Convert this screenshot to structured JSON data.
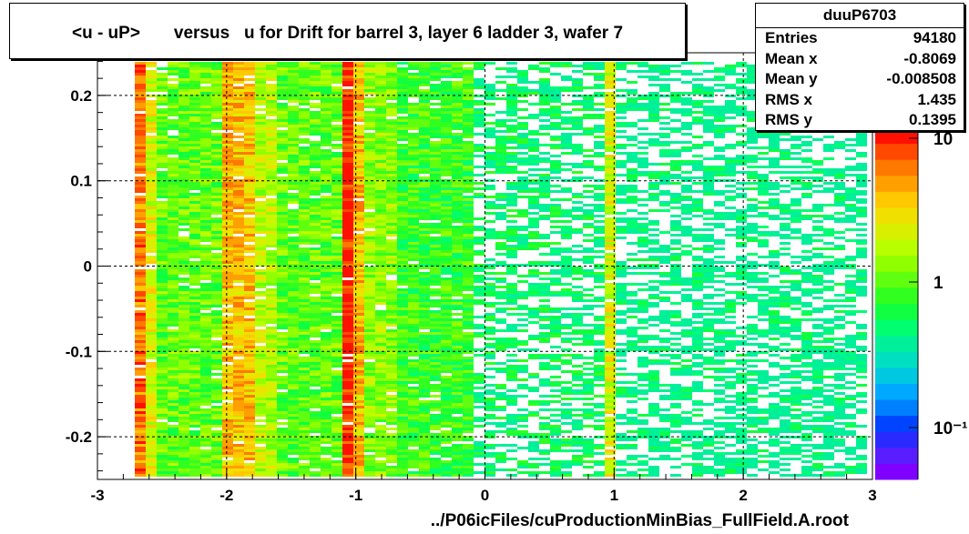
{
  "title": "<u - uP>       versus   u for Drift for barrel 3, layer 6 ladder 3, wafer 7",
  "stats": {
    "name": "duuP6703",
    "rows": [
      {
        "label": "Entries",
        "value": "94180"
      },
      {
        "label": "Mean x",
        "value": "-0.8069"
      },
      {
        "label": "Mean y",
        "value": "-0.008508"
      },
      {
        "label": "RMS x",
        "value": "1.435"
      },
      {
        "label": "RMS y",
        "value": "0.1395"
      }
    ]
  },
  "chart_data": {
    "type": "heatmap",
    "title": "<u - uP>       versus   u for Drift for barrel 3, layer 6 ladder 3, wafer 7",
    "xlabel": "../P06icFiles/cuProductionMinBias_FullField.A.root",
    "ylabel": "",
    "xlim": [
      -3,
      3
    ],
    "ylim": [
      -0.25,
      0.25
    ],
    "x_ticks": [
      "-3",
      "-2",
      "-1",
      "0",
      "1",
      "2",
      "3"
    ],
    "y_ticks": [
      "-0.2",
      "-0.1",
      "0",
      "0.1",
      "0.2"
    ],
    "z_scale": "log",
    "z_ticks": [
      "10",
      "1",
      "10⁻¹"
    ],
    "grid": true,
    "palette": [
      "#7f00ff",
      "#5a1dff",
      "#2a2aff",
      "#0044ff",
      "#0080ff",
      "#00a8ff",
      "#00c8e0",
      "#00e0c0",
      "#00f09a",
      "#00ff70",
      "#10ff40",
      "#30ff20",
      "#60ff10",
      "#90ff00",
      "#b8ff00",
      "#d8f000",
      "#f0e000",
      "#ffc800",
      "#ffa000",
      "#ff7800",
      "#ff4800",
      "#ff1000"
    ],
    "bands": [
      {
        "x": [
          -2.72,
          -2.66
        ],
        "level": 19
      },
      {
        "x": [
          -2.66,
          -2.55
        ],
        "level": 15
      },
      {
        "x": [
          -2.55,
          -2.0
        ],
        "level": 12
      },
      {
        "x": [
          -2.0,
          -1.82
        ],
        "level": 17
      },
      {
        "x": [
          -1.82,
          -1.6
        ],
        "level": 14
      },
      {
        "x": [
          -1.6,
          -1.1
        ],
        "level": 12
      },
      {
        "x": [
          -1.1,
          -1.03
        ],
        "level": 21
      },
      {
        "x": [
          -1.03,
          -0.97
        ],
        "level": 17
      },
      {
        "x": [
          -0.97,
          -0.7
        ],
        "level": 13
      },
      {
        "x": [
          -0.7,
          -0.12
        ],
        "level": 11
      },
      {
        "x": [
          -0.12,
          0.9
        ],
        "level": 9
      },
      {
        "x": [
          0.9,
          0.97
        ],
        "level": 15
      },
      {
        "x": [
          0.97,
          2.95
        ],
        "level": 8
      },
      {
        "x": [
          2.95,
          3.0
        ],
        "level": 17
      }
    ]
  }
}
